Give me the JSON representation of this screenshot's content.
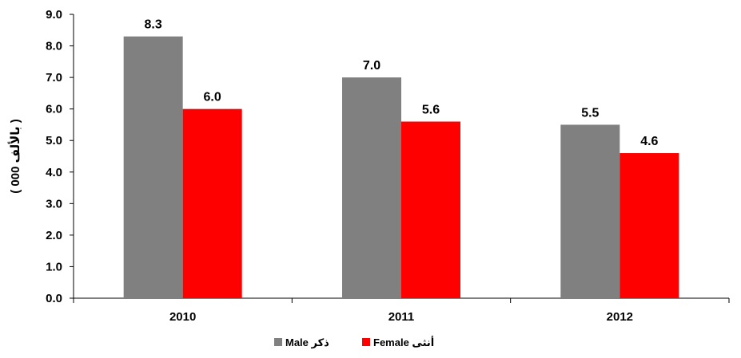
{
  "chart_data": {
    "type": "bar",
    "categories": [
      "2010",
      "2011",
      "2012"
    ],
    "series": [
      {
        "name": "ذكر Male",
        "values": [
          8.3,
          7.0,
          5.5
        ],
        "color": "#808080"
      },
      {
        "name": "أنثى Female",
        "values": [
          6.0,
          5.6,
          4.6
        ],
        "color": "#ff0000"
      }
    ],
    "data_labels": [
      [
        "8.3",
        "7.0",
        "5.5"
      ],
      [
        "6.0",
        "5.6",
        "4.6"
      ]
    ],
    "title": "",
    "xlabel": "",
    "ylabel": "( 000 بالألف )",
    "ylim": [
      0,
      9
    ],
    "yticks": [
      "0.0",
      "1.0",
      "2.0",
      "3.0",
      "4.0",
      "5.0",
      "6.0",
      "7.0",
      "8.0",
      "9.0"
    ],
    "grid": false,
    "legend_position": "bottom-center"
  }
}
